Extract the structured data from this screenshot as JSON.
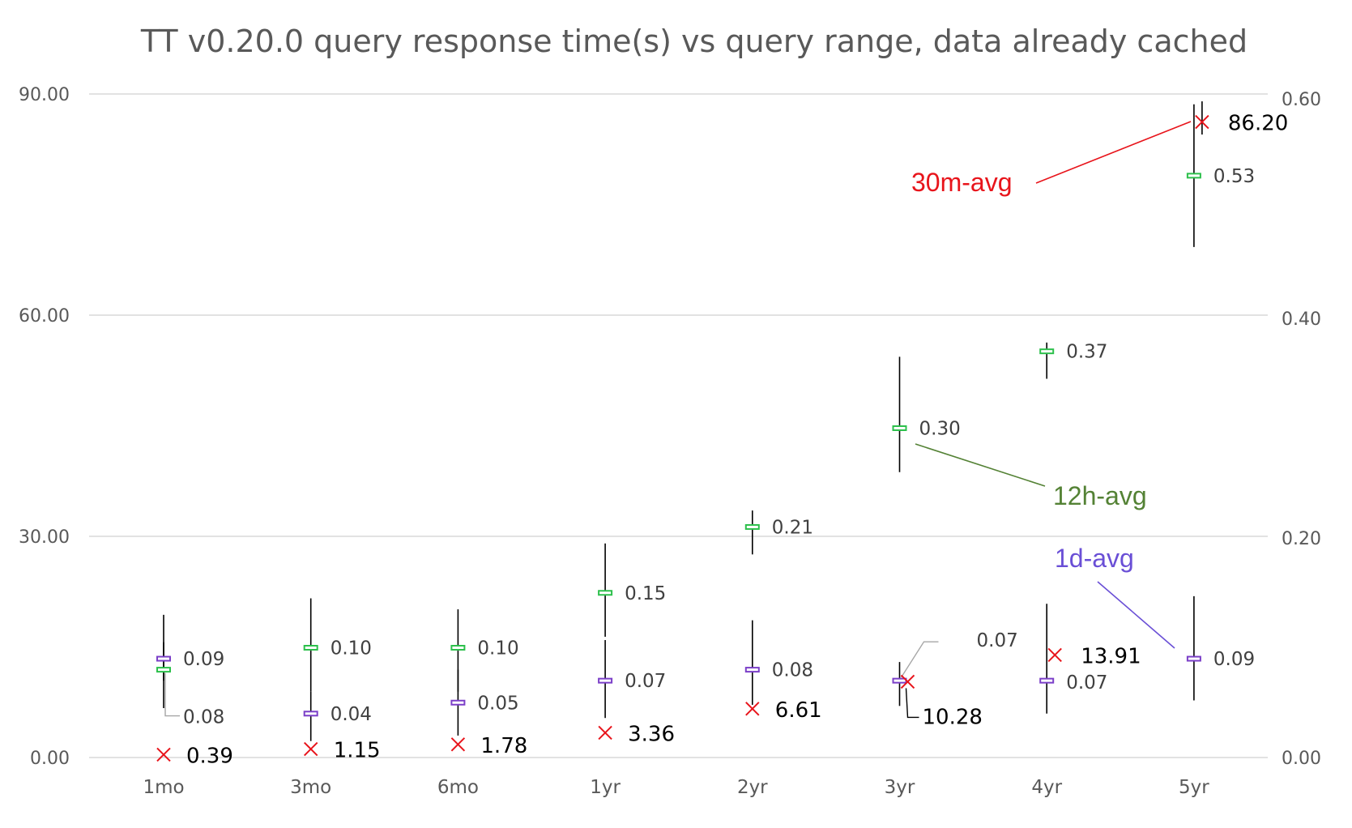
{
  "chart_data": {
    "type": "scatter",
    "title": "TT v0.20.0 query response time(s) vs query range, data already cached",
    "categories": [
      "1mo",
      "3mo",
      "6mo",
      "1yr",
      "2yr",
      "3yr",
      "4yr",
      "5yr"
    ],
    "y_left": {
      "ticks": [
        "90.00",
        "60.00",
        "30.00",
        "0.00"
      ],
      "range": [
        0,
        90
      ]
    },
    "y_right": {
      "ticks": [
        "0.60",
        "0.40",
        "0.20",
        "0.00"
      ],
      "range": [
        0,
        0.6
      ]
    },
    "grid": true,
    "series": [
      {
        "name": "30m-avg",
        "axis": "left",
        "marker": "x",
        "color": "#e8141b",
        "values": [
          0.39,
          1.15,
          1.78,
          3.36,
          6.61,
          10.28,
          13.91,
          86.2
        ],
        "labels": [
          "0.39",
          "1.15",
          "1.78",
          "3.36",
          "6.61",
          "10.28",
          "13.91",
          "86.20"
        ],
        "err_low": [
          null,
          null,
          null,
          null,
          null,
          null,
          null,
          84.5
        ],
        "err_high": [
          null,
          null,
          null,
          null,
          null,
          null,
          null,
          89.0
        ]
      },
      {
        "name": "12h-avg",
        "axis": "right",
        "marker": "dash",
        "color": "#2dc04c",
        "values": [
          0.08,
          0.1,
          0.1,
          0.15,
          0.21,
          0.3,
          0.37,
          0.53
        ],
        "labels": [
          "0.08",
          "0.10",
          "0.10",
          "0.15",
          "0.21",
          "0.30",
          "0.37",
          "0.53"
        ],
        "err_low": [
          0.045,
          0.06,
          0.06,
          0.11,
          0.185,
          0.26,
          0.345,
          0.465
        ],
        "err_high": [
          0.13,
          0.145,
          0.135,
          0.195,
          0.225,
          0.365,
          0.378,
          0.595
        ]
      },
      {
        "name": "1d-avg",
        "axis": "right",
        "marker": "dash",
        "color": "#7b3fc8",
        "values": [
          0.09,
          0.04,
          0.05,
          0.07,
          0.08,
          0.07,
          0.07,
          0.09
        ],
        "labels": [
          "0.09",
          "0.04",
          "0.05",
          "0.07",
          "0.08",
          "0.07",
          "0.07",
          "0.09"
        ],
        "err_low": [
          0.07,
          0.015,
          0.02,
          0.036,
          0.048,
          0.047,
          0.04,
          0.052
        ],
        "err_high": [
          0.105,
          0.06,
          0.08,
          0.107,
          0.125,
          0.087,
          0.14,
          0.147
        ]
      }
    ]
  }
}
